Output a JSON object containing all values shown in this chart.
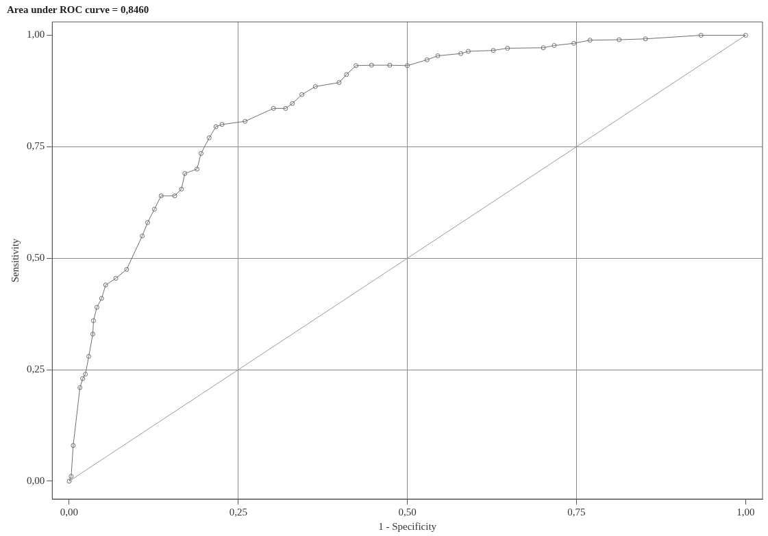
{
  "chart_data": {
    "type": "line",
    "title": "Area under ROC curve = 0,8460",
    "xlabel": "1 - Specificity",
    "ylabel": "Sensitivity",
    "xlim": [
      -0.025,
      1.025
    ],
    "ylim": [
      -0.04,
      1.03
    ],
    "xticks": [
      {
        "value": 0,
        "label": "0,00"
      },
      {
        "value": 0.25,
        "label": "0,25"
      },
      {
        "value": 0.5,
        "label": "0,50"
      },
      {
        "value": 0.75,
        "label": "0,75"
      },
      {
        "value": 1,
        "label": "1,00"
      }
    ],
    "yticks": [
      {
        "value": 0,
        "label": "0,00"
      },
      {
        "value": 0.25,
        "label": "0,25"
      },
      {
        "value": 0.5,
        "label": "0,50"
      },
      {
        "value": 0.75,
        "label": "0,75"
      },
      {
        "value": 1,
        "label": "1,00"
      }
    ],
    "grid": true,
    "legend": false,
    "series": [
      {
        "color": "#6e6e6e",
        "marker": "circle",
        "x": [
          0,
          0.003,
          0.006,
          0.016,
          0.02,
          0.024,
          0.029,
          0.035,
          0.036,
          0.041,
          0.048,
          0.054,
          0.069,
          0.085,
          0.108,
          0.116,
          0.126,
          0.136,
          0.156,
          0.166,
          0.171,
          0.189,
          0.195,
          0.207,
          0.217,
          0.226,
          0.26,
          0.302,
          0.32,
          0.33,
          0.344,
          0.364,
          0.399,
          0.41,
          0.424,
          0.447,
          0.474,
          0.5,
          0.529,
          0.545,
          0.579,
          0.59,
          0.627,
          0.648,
          0.701,
          0.717,
          0.746,
          0.77,
          0.813,
          0.852,
          0.934,
          1
        ],
        "values": [
          0,
          0.011,
          0.08,
          0.21,
          0.23,
          0.24,
          0.28,
          0.33,
          0.36,
          0.39,
          0.41,
          0.44,
          0.455,
          0.475,
          0.55,
          0.58,
          0.61,
          0.64,
          0.64,
          0.655,
          0.69,
          0.7,
          0.735,
          0.77,
          0.795,
          0.8,
          0.807,
          0.836,
          0.836,
          0.847,
          0.867,
          0.885,
          0.894,
          0.912,
          0.932,
          0.933,
          0.933,
          0.932,
          0.945,
          0.954,
          0.959,
          0.964,
          0.966,
          0.971,
          0.972,
          0.977,
          0.982,
          0.989,
          0.99,
          0.992,
          1,
          1
        ]
      },
      {
        "color": "#9a9a9a",
        "marker": "none",
        "x": [
          0,
          1
        ],
        "values": [
          0,
          1
        ]
      }
    ]
  }
}
